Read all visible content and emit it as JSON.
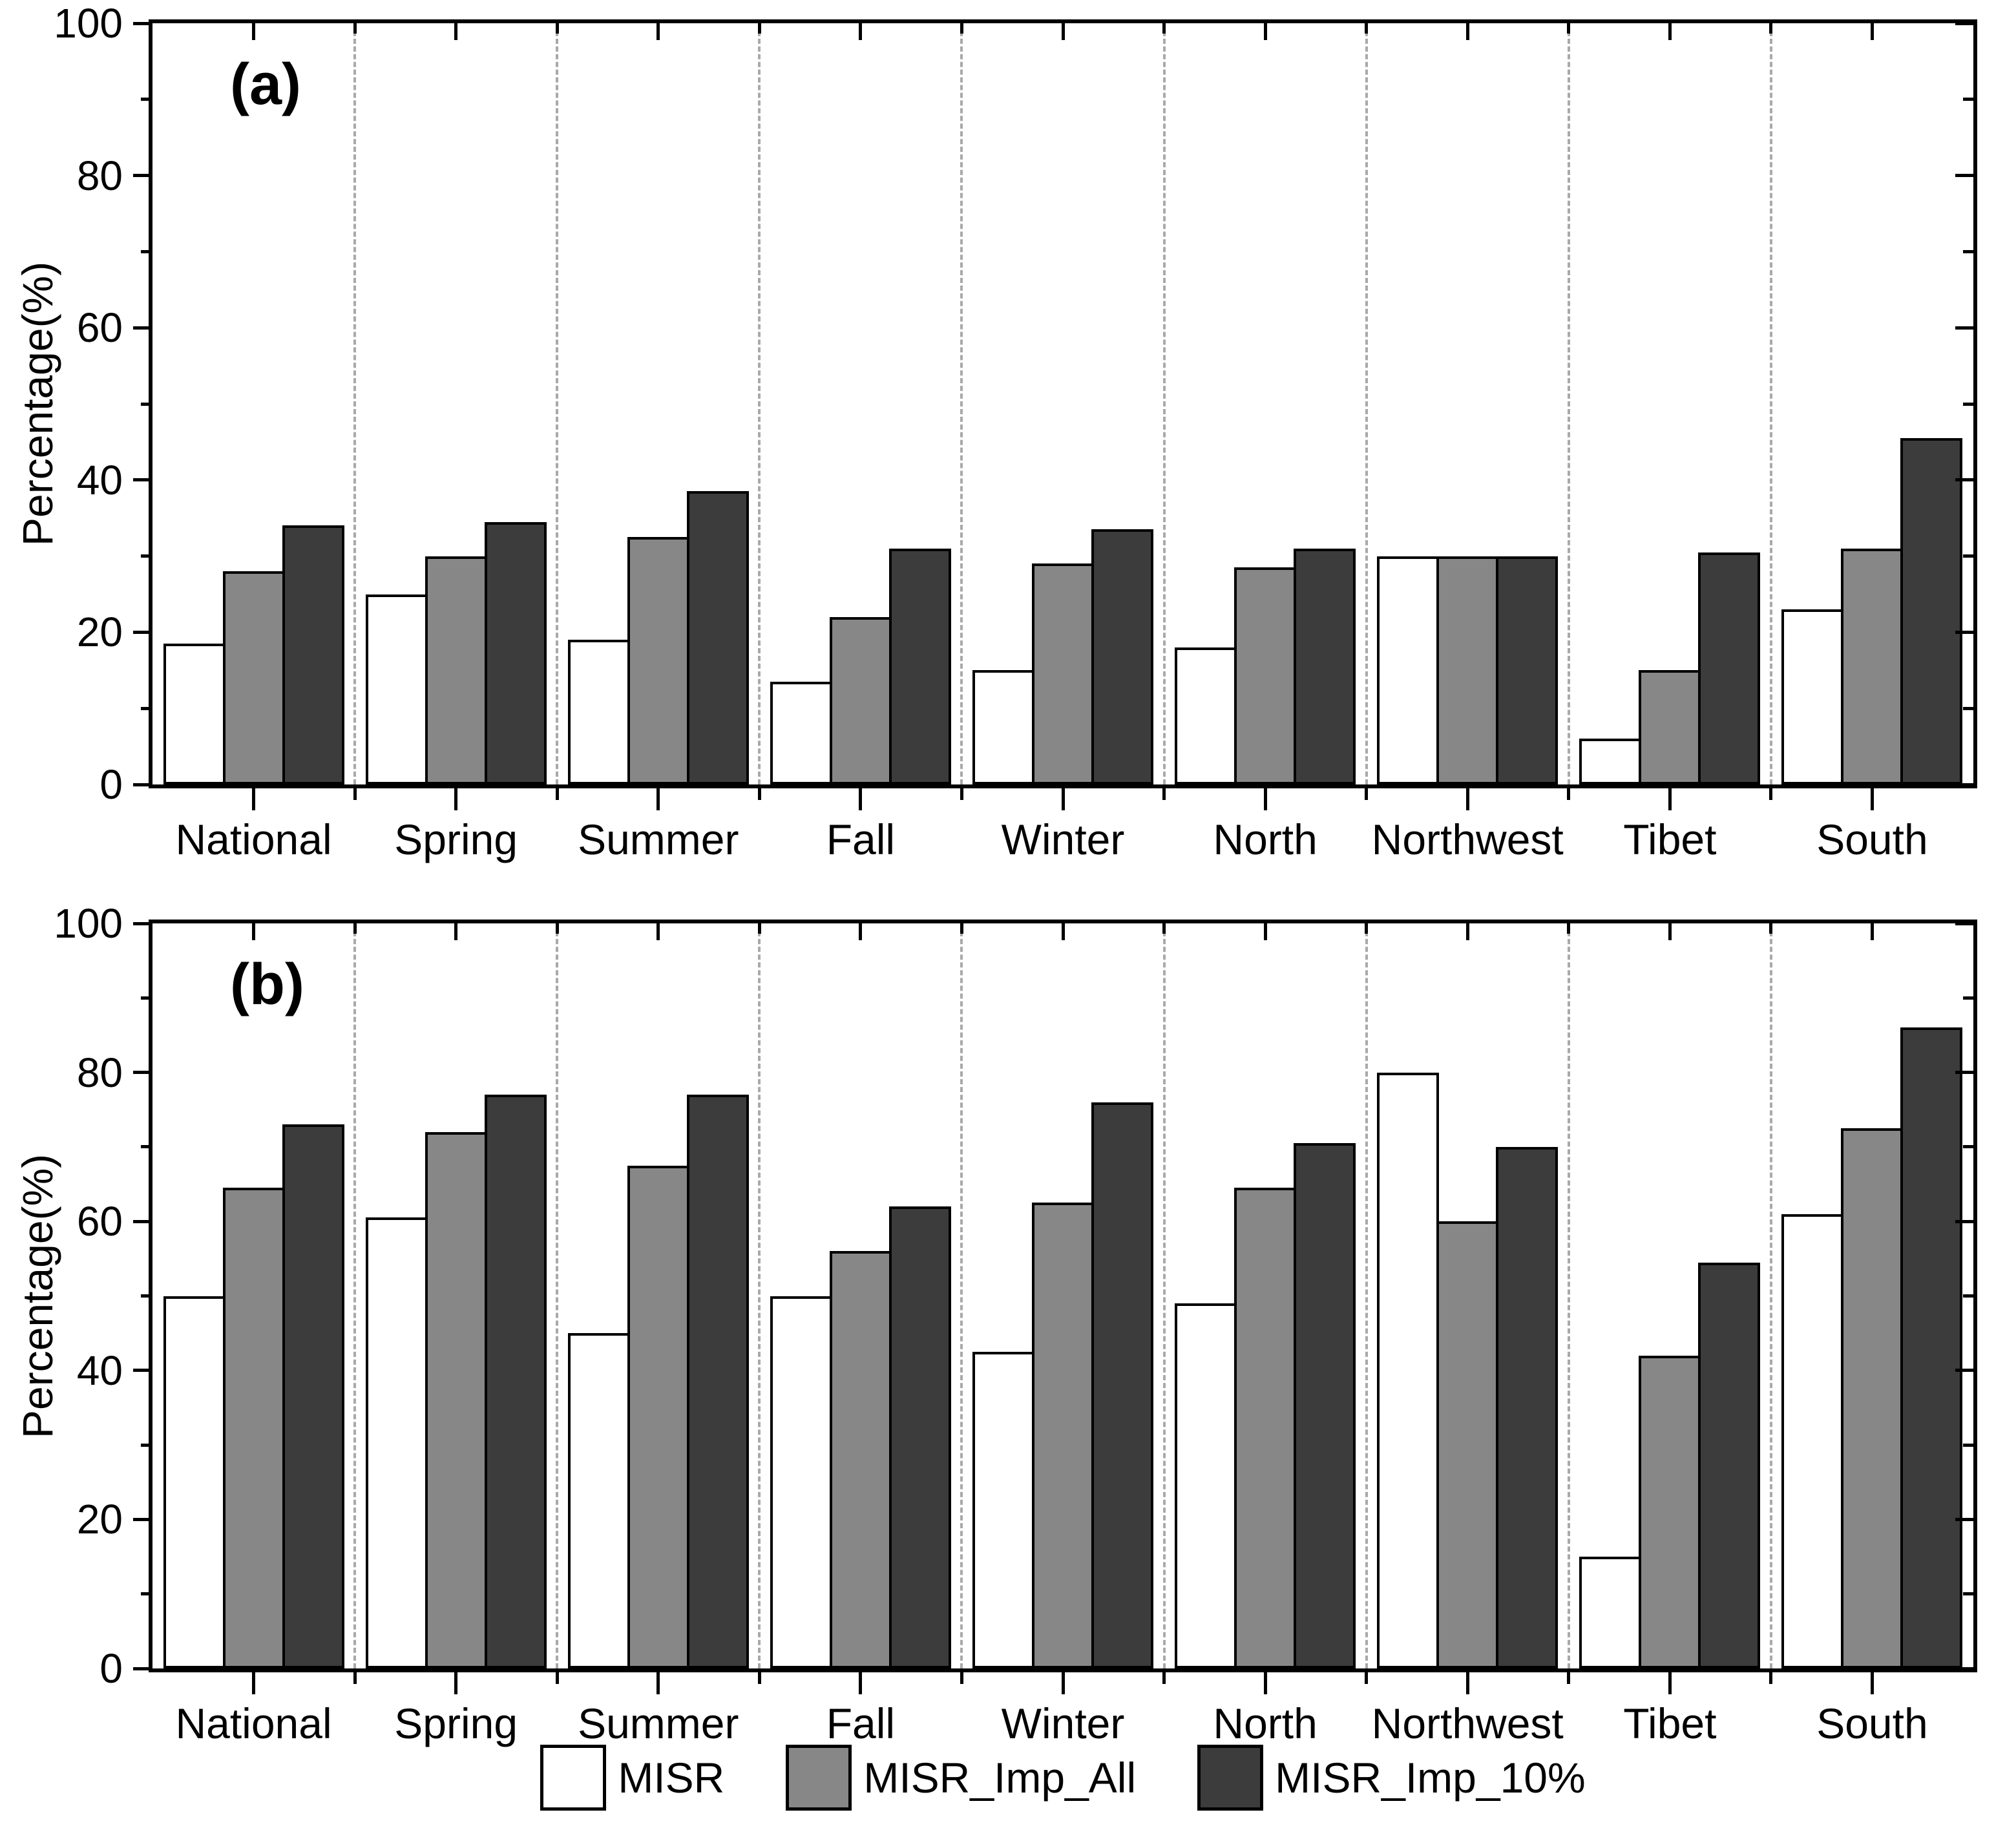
{
  "figure": {
    "ylabel": "Percentage(%)",
    "separator_color": "#a9a9a9",
    "axis_color": "#000000"
  },
  "chart_data": [
    {
      "type": "bar",
      "panel_label": "(a)",
      "ylabel": "Percentage(%)",
      "ylim": [
        0,
        100
      ],
      "yticks_labeled": [
        0,
        20,
        40,
        60,
        80,
        100
      ],
      "ytick_minor_step": 10,
      "grid": "vertical dashed separators between groups",
      "legend_position": "shared bottom",
      "categories": [
        "National",
        "Spring",
        "Summer",
        "Fall",
        "Winter",
        "North",
        "Northwest",
        "Tibet",
        "South"
      ],
      "series": [
        {
          "name": "MISR",
          "color": "#ffffff",
          "values": [
            18.5,
            25,
            19,
            13.5,
            15,
            18,
            30,
            6,
            23
          ]
        },
        {
          "name": "MISR_Imp_All",
          "color": "#878787",
          "values": [
            28,
            30,
            32.5,
            22,
            29,
            28.5,
            30,
            15,
            31
          ]
        },
        {
          "name": "MISR_Imp_10%",
          "color": "#3c3c3c",
          "values": [
            34,
            34.5,
            38.5,
            31,
            33.5,
            31,
            30,
            30.5,
            45.5
          ]
        }
      ]
    },
    {
      "type": "bar",
      "panel_label": "(b)",
      "ylabel": "Percentage(%)",
      "ylim": [
        0,
        100
      ],
      "yticks_labeled": [
        0,
        20,
        40,
        60,
        80,
        100
      ],
      "ytick_minor_step": 10,
      "grid": "vertical dashed separators between groups",
      "legend_position": "shared bottom",
      "categories": [
        "National",
        "Spring",
        "Summer",
        "Fall",
        "Winter",
        "North",
        "Northwest",
        "Tibet",
        "South"
      ],
      "series": [
        {
          "name": "MISR",
          "color": "#ffffff",
          "values": [
            50,
            60.5,
            45,
            50,
            42.5,
            49,
            80,
            15,
            61
          ]
        },
        {
          "name": "MISR_Imp_All",
          "color": "#878787",
          "values": [
            64.5,
            72,
            67.5,
            56,
            62.5,
            64.5,
            60,
            42,
            72.5
          ]
        },
        {
          "name": "MISR_Imp_10%",
          "color": "#3c3c3c",
          "values": [
            73,
            77,
            77,
            62,
            76,
            70.5,
            70,
            54.5,
            86
          ]
        }
      ]
    }
  ]
}
